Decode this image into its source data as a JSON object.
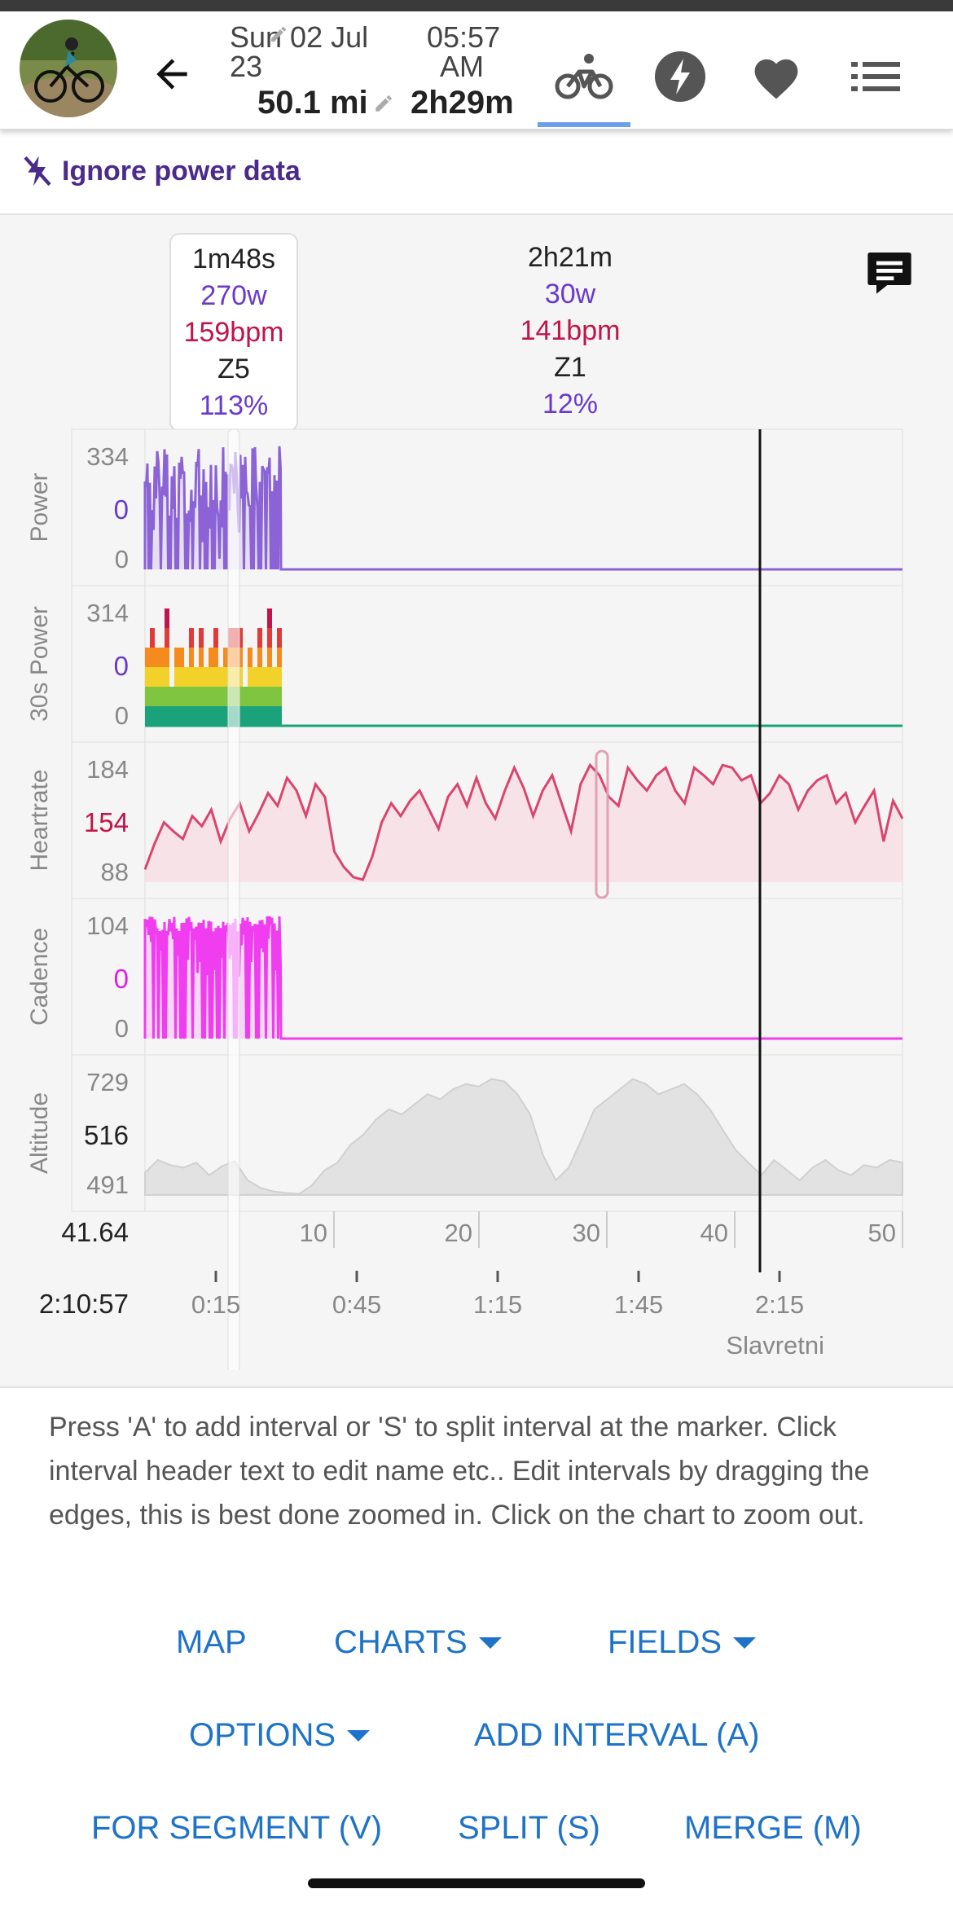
{
  "header": {
    "date_line1": "Sun 02 Jul",
    "date_line2": "23",
    "time_line1": "05:57",
    "time_line2": "AM",
    "distance": "50.1 mi",
    "duration": "2h29m"
  },
  "ignore_power": {
    "label": "Ignore power data"
  },
  "intervals": [
    {
      "duration": "1m48s",
      "power": "270w",
      "hr": "159bpm",
      "zone": "Z5",
      "pct": "113%"
    },
    {
      "duration": "2h21m",
      "power": "30w",
      "hr": "141bpm",
      "zone": "Z1",
      "pct": "12%"
    }
  ],
  "chart_data": {
    "type": "line",
    "panels": [
      {
        "name": "Power",
        "ticks": {
          "top": "334",
          "mid": "0",
          "bottom": "0"
        },
        "color": "#8b63d6"
      },
      {
        "name": "30s Power",
        "ticks": {
          "top": "314",
          "mid": "0",
          "bottom": "0"
        },
        "color": "#1aa37a"
      },
      {
        "name": "Heartrate",
        "ticks": {
          "top": "184",
          "mid": "154",
          "bottom": "88"
        },
        "color": "#d9456e"
      },
      {
        "name": "Cadence",
        "ticks": {
          "top": "104",
          "mid": "0",
          "bottom": "0"
        },
        "color": "#f03df0"
      },
      {
        "name": "Altitude",
        "ticks": {
          "top": "729",
          "mid": "516",
          "bottom": "491"
        },
        "color": "#c8c8c8"
      }
    ],
    "distance_axis": {
      "marker_label": "41.64",
      "ticks": [
        "10",
        "20",
        "30",
        "40",
        "50"
      ]
    },
    "time_axis": {
      "marker_label": "2:10:57",
      "ticks": [
        "0:15",
        "0:45",
        "1:15",
        "1:45",
        "2:15"
      ]
    },
    "segment_label": "Slavretni",
    "series": {
      "heartrate": [
        98,
        118,
        135,
        128,
        122,
        140,
        132,
        145,
        120,
        138,
        150,
        128,
        142,
        158,
        148,
        170,
        160,
        140,
        165,
        155,
        112,
        100,
        92,
        90,
        108,
        135,
        150,
        140,
        152,
        160,
        145,
        130,
        155,
        165,
        148,
        170,
        150,
        138,
        160,
        178,
        162,
        140,
        160,
        172,
        150,
        128,
        165,
        180,
        172,
        155,
        148,
        178,
        168,
        160,
        172,
        178,
        160,
        150,
        178,
        172,
        165,
        180,
        178,
        168,
        172,
        150,
        158,
        172,
        165,
        145,
        160,
        168,
        172,
        150,
        158,
        135,
        148,
        160,
        120,
        152,
        138
      ],
      "altitude": [
        535,
        560,
        550,
        545,
        555,
        530,
        548,
        558,
        520,
        505,
        498,
        495,
        493,
        510,
        540,
        555,
        590,
        610,
        640,
        660,
        650,
        670,
        690,
        680,
        700,
        710,
        705,
        720,
        715,
        690,
        650,
        570,
        520,
        545,
        600,
        660,
        680,
        700,
        720,
        710,
        690,
        700,
        710,
        690,
        660,
        620,
        580,
        555,
        530,
        560,
        540,
        520,
        545,
        560,
        540,
        530,
        550,
        545,
        560,
        555
      ]
    }
  },
  "help": {
    "text": "Press 'A' to add interval or 'S' to split interval at the marker. Click interval header text to edit name etc.. Edit intervals by dragging the edges, this is best done zoomed in. Click on the chart to zoom out."
  },
  "buttons": {
    "map": "MAP",
    "charts": "CHARTS",
    "fields": "FIELDS",
    "options": "OPTIONS",
    "add_interval": "ADD INTERVAL (A)",
    "for_segment": "FOR SEGMENT (V)",
    "split": "SPLIT (S)",
    "merge": "MERGE (M)"
  }
}
